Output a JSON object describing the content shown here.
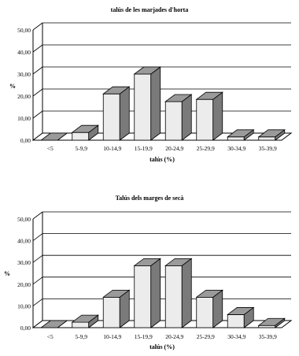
{
  "chart_data": [
    {
      "type": "bar",
      "title": "talús de les marjades d'horta",
      "ylabel": "%",
      "xlabel": "talús (%)",
      "ylim": [
        0,
        50
      ],
      "yticks": [
        "0,00",
        "10,00",
        "20,00",
        "30,00",
        "40,00",
        "50,00"
      ],
      "categories": [
        "<5",
        "5-9,9",
        "10-14,9",
        "15-19,9",
        "20-24,9",
        "25-29,9",
        "30-34,9",
        "35-39,9"
      ],
      "values": [
        0.0,
        3.5,
        21.0,
        30.0,
        17.5,
        18.5,
        1.5,
        1.5
      ],
      "grid": true,
      "style": "3d"
    },
    {
      "type": "bar",
      "title": "Talús dels marges de secà",
      "ylabel": "%",
      "xlabel": "talús (%)",
      "ylim": [
        0,
        50
      ],
      "yticks": [
        "0,00",
        "10,00",
        "20,00",
        "30,00",
        "40,00",
        "50,00"
      ],
      "categories": [
        "<5",
        "5-9,9",
        "10-14,9",
        "15-19,9",
        "20-24,9",
        "25-29,9",
        "30-34,9",
        "35-39,9"
      ],
      "values": [
        0.0,
        2.5,
        14.0,
        28.5,
        28.5,
        14.0,
        6.0,
        1.0
      ],
      "grid": true,
      "style": "3d"
    }
  ]
}
